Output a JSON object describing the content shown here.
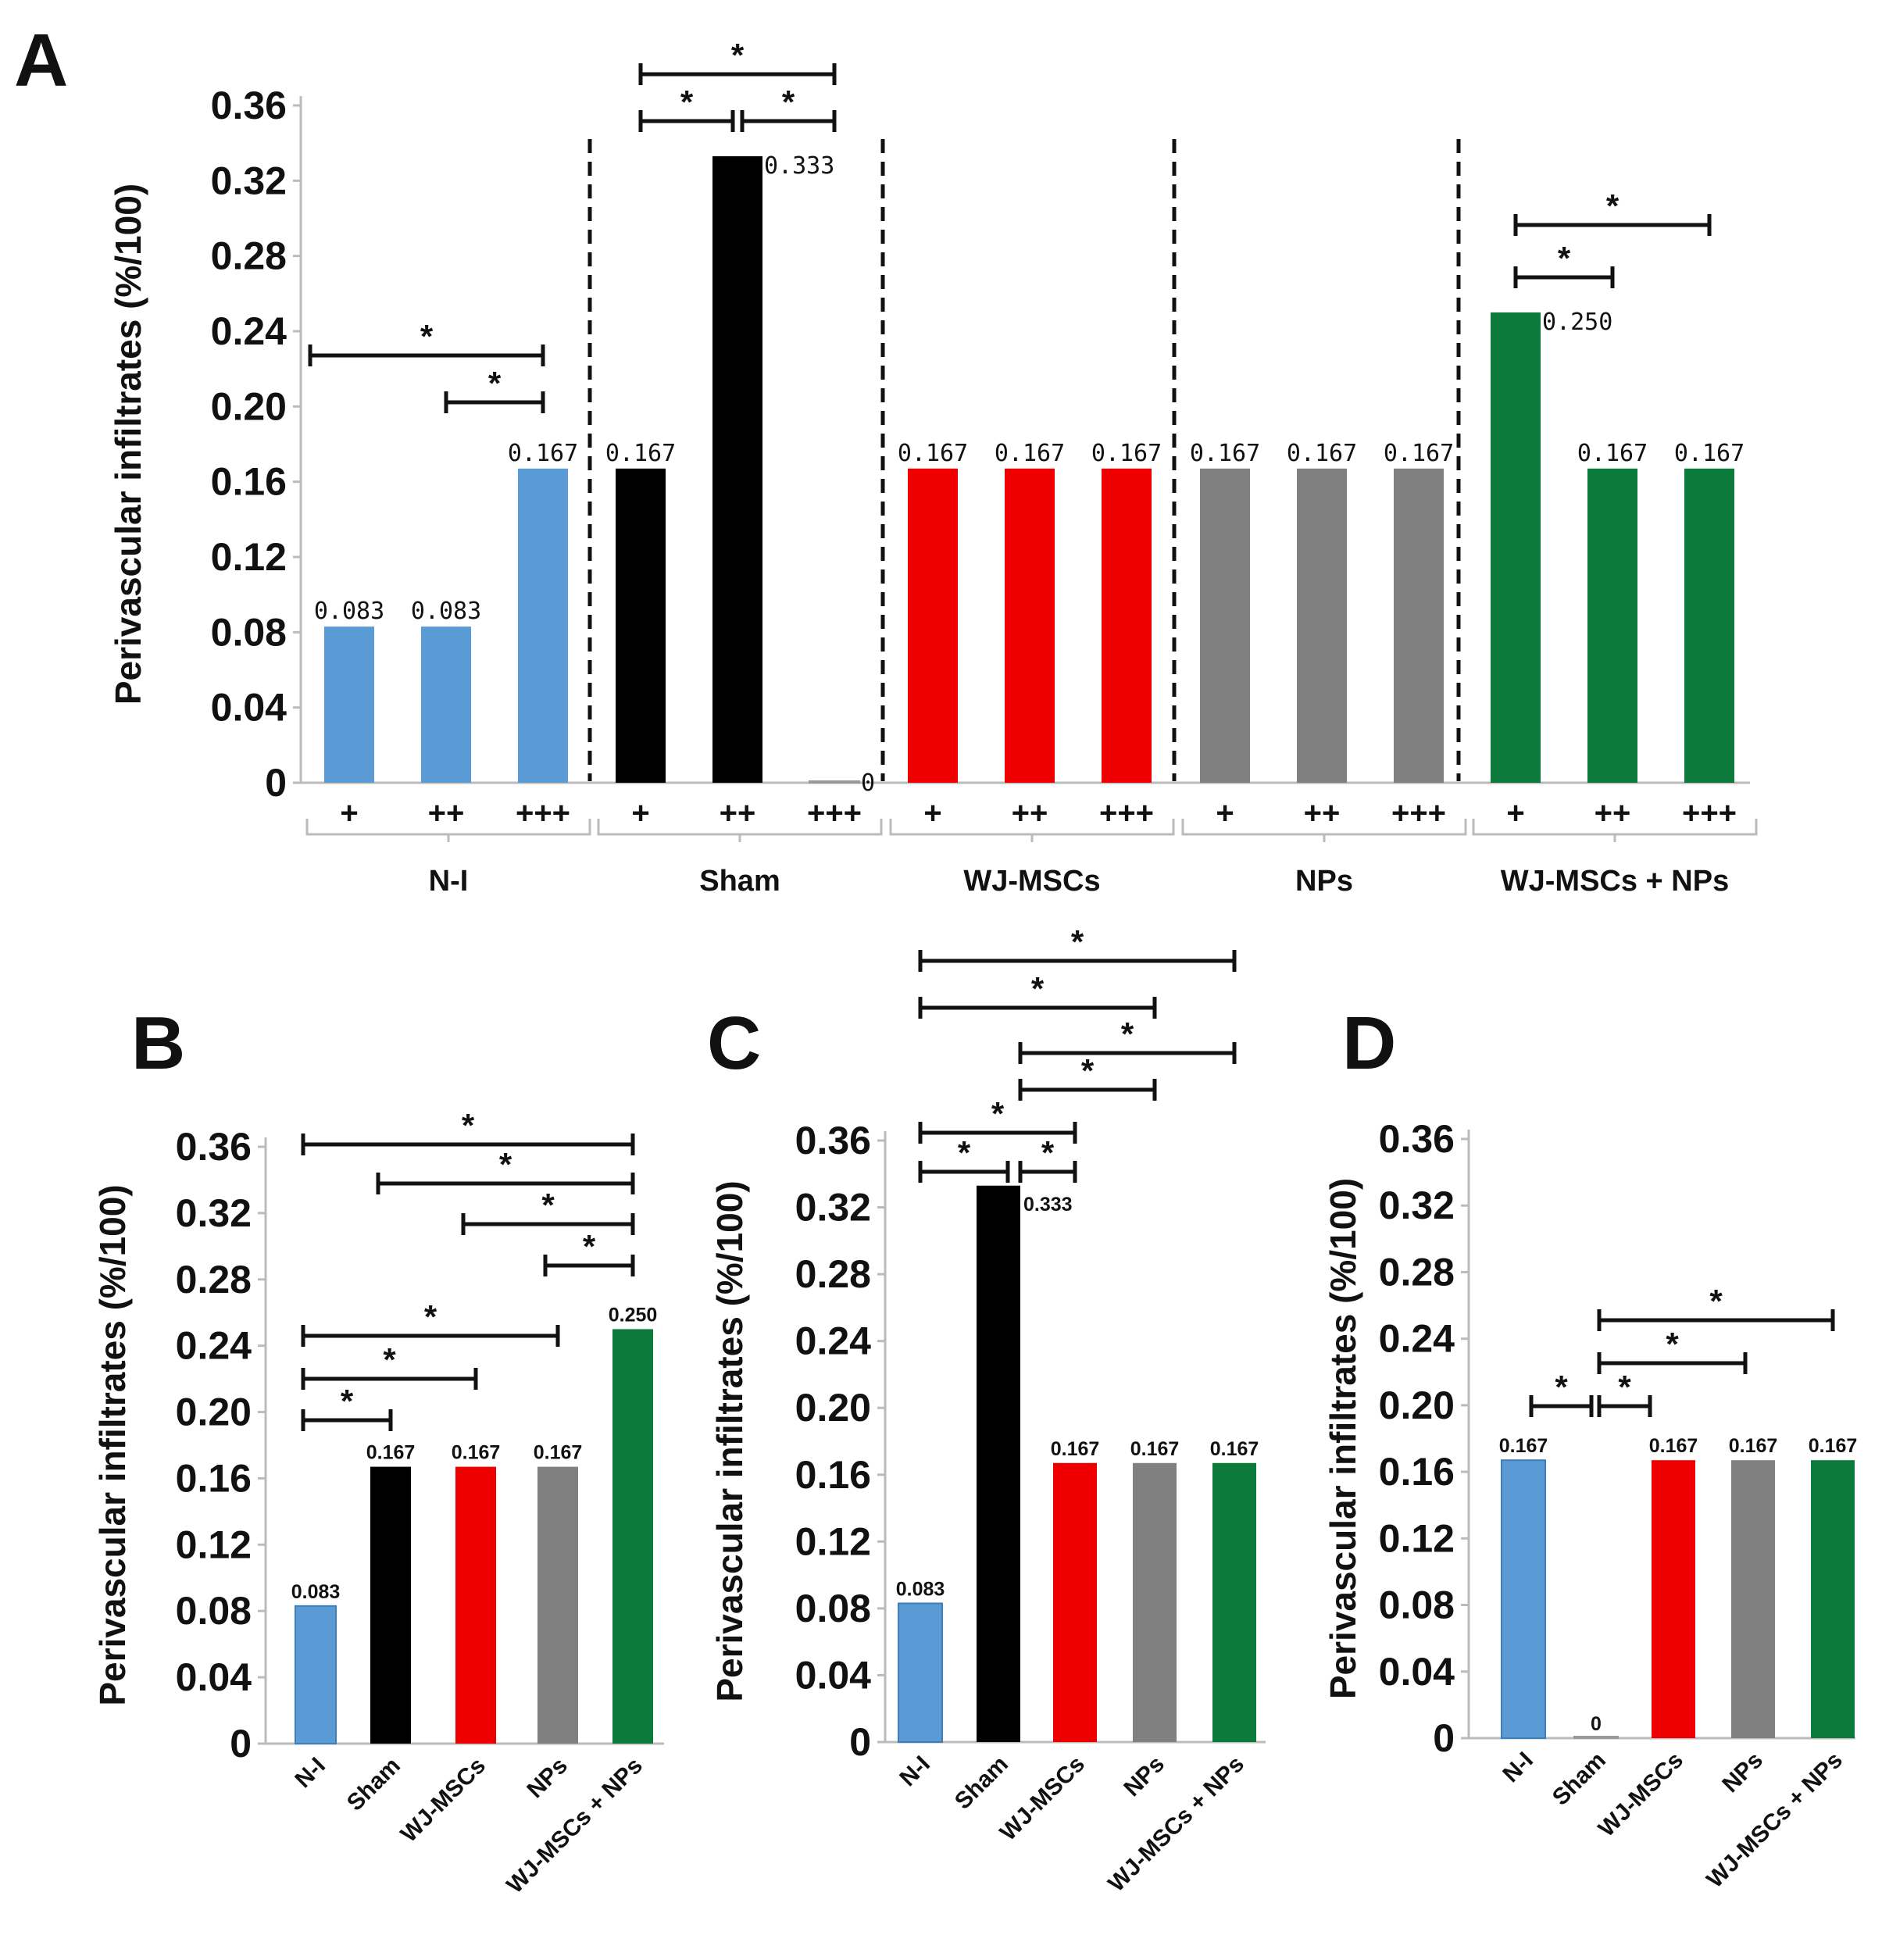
{
  "colors": {
    "N-I": "#5b9bd5",
    "Sham": "#000000",
    "WJ-MSCs": "#ee0000",
    "NPs": "#808080",
    "WJ-MSCs + NPs": "#0b7a3b"
  },
  "chart_data": [
    {
      "panel": "A",
      "type": "bar",
      "ylabel": "Perivascular infiltrates (%/100)",
      "ylim": [
        0,
        0.36
      ],
      "yticks": [
        "0",
        "0.04",
        "0.08",
        "0.12",
        "0.16",
        "0.20",
        "0.24",
        "0.28",
        "0.32",
        "0.36"
      ],
      "groups": [
        {
          "name": "N-I",
          "subs": [
            "+",
            "++",
            "+++"
          ],
          "values": [
            0.083,
            0.083,
            0.167
          ],
          "labels": [
            "0.083",
            "0.083",
            "0.167"
          ]
        },
        {
          "name": "Sham",
          "subs": [
            "+",
            "++",
            "+++"
          ],
          "values": [
            0.167,
            0.333,
            0
          ],
          "labels": [
            "0.167",
            "0.333",
            "0"
          ]
        },
        {
          "name": "WJ-MSCs",
          "subs": [
            "+",
            "++",
            "+++"
          ],
          "values": [
            0.167,
            0.167,
            0.167
          ],
          "labels": [
            "0.167",
            "0.167",
            "0.167"
          ]
        },
        {
          "name": "NPs",
          "subs": [
            "+",
            "++",
            "+++"
          ],
          "values": [
            0.167,
            0.167,
            0.167
          ],
          "labels": [
            "0.167",
            "0.167",
            "0.167"
          ]
        },
        {
          "name": "WJ-MSCs + NPs",
          "subs": [
            "+",
            "++",
            "+++"
          ],
          "values": [
            0.25,
            0.167,
            0.167
          ],
          "labels": [
            "0.250",
            "0.167",
            "0.167"
          ]
        }
      ],
      "significance": [
        {
          "group": 0,
          "from": 0,
          "to": 2,
          "label": "*"
        },
        {
          "group": 0,
          "from": 1,
          "to": 2,
          "label": "*"
        },
        {
          "group": 1,
          "from": 0,
          "to": 2,
          "label": "*"
        },
        {
          "group": 1,
          "from": 0,
          "to": 1,
          "label": "*"
        },
        {
          "group": 1,
          "from": 1,
          "to": 2,
          "label": "*"
        },
        {
          "group": 4,
          "from": 0,
          "to": 2,
          "label": "*"
        },
        {
          "group": 4,
          "from": 0,
          "to": 1,
          "label": "*"
        }
      ]
    },
    {
      "panel": "B",
      "type": "bar",
      "ylabel": "Perivascular infiltrates (%/100)",
      "ylim": [
        0,
        0.36
      ],
      "yticks": [
        "0",
        "0.04",
        "0.08",
        "0.12",
        "0.16",
        "0.20",
        "0.24",
        "0.28",
        "0.32",
        "0.36"
      ],
      "categories": [
        "N-I",
        "Sham",
        "WJ-MSCs",
        "NPs",
        "WJ-MSCs + NPs"
      ],
      "values": [
        0.083,
        0.167,
        0.167,
        0.167,
        0.25
      ],
      "labels": [
        "0.083",
        "0.167",
        "0.167",
        "0.167",
        "0.250"
      ],
      "significance": [
        {
          "from": 0,
          "to": 4,
          "label": "*"
        },
        {
          "from": 1,
          "to": 4,
          "label": "*"
        },
        {
          "from": 2,
          "to": 4,
          "label": "*"
        },
        {
          "from": 3,
          "to": 4,
          "label": "*"
        },
        {
          "from": 0,
          "to": 3,
          "label": "*"
        },
        {
          "from": 0,
          "to": 2,
          "label": "*"
        },
        {
          "from": 0,
          "to": 1,
          "label": "*"
        }
      ]
    },
    {
      "panel": "C",
      "type": "bar",
      "ylabel": "Perivascular infiltrates (%/100)",
      "ylim": [
        0,
        0.36
      ],
      "yticks": [
        "0",
        "0.04",
        "0.08",
        "0.12",
        "0.16",
        "0.20",
        "0.24",
        "0.28",
        "0.32",
        "0.36"
      ],
      "categories": [
        "N-I",
        "Sham",
        "WJ-MSCs",
        "NPs",
        "WJ-MSCs + NPs"
      ],
      "values": [
        0.083,
        0.333,
        0.167,
        0.167,
        0.167
      ],
      "labels": [
        "0.083",
        "0.333",
        "0.167",
        "0.167",
        "0.167"
      ],
      "significance": [
        {
          "from": 0,
          "to": 4,
          "label": "*"
        },
        {
          "from": 0,
          "to": 3,
          "label": "*"
        },
        {
          "from": 1,
          "to": 4,
          "label": "*"
        },
        {
          "from": 1,
          "to": 3,
          "label": "*"
        },
        {
          "from": 0,
          "to": 2,
          "label": "*"
        },
        {
          "from": 0,
          "to": 1,
          "label": "*"
        },
        {
          "from": 1,
          "to": 2,
          "label": "*"
        }
      ]
    },
    {
      "panel": "D",
      "type": "bar",
      "ylabel": "Perivascular infiltrates (%/100)",
      "ylim": [
        0,
        0.36
      ],
      "yticks": [
        "0",
        "0.04",
        "0.08",
        "0.12",
        "0.16",
        "0.20",
        "0.24",
        "0.28",
        "0.32",
        "0.36"
      ],
      "categories": [
        "N-I",
        "Sham",
        "WJ-MSCs",
        "NPs",
        "WJ-MSCs + NPs"
      ],
      "values": [
        0.167,
        0,
        0.167,
        0.167,
        0.167
      ],
      "labels": [
        "0.167",
        "0",
        "0.167",
        "0.167",
        "0.167"
      ],
      "significance": [
        {
          "from": 1,
          "to": 4,
          "label": "*"
        },
        {
          "from": 1,
          "to": 3,
          "label": "*"
        },
        {
          "from": 0,
          "to": 1,
          "label": "*"
        },
        {
          "from": 1,
          "to": 2,
          "label": "*"
        }
      ]
    }
  ]
}
